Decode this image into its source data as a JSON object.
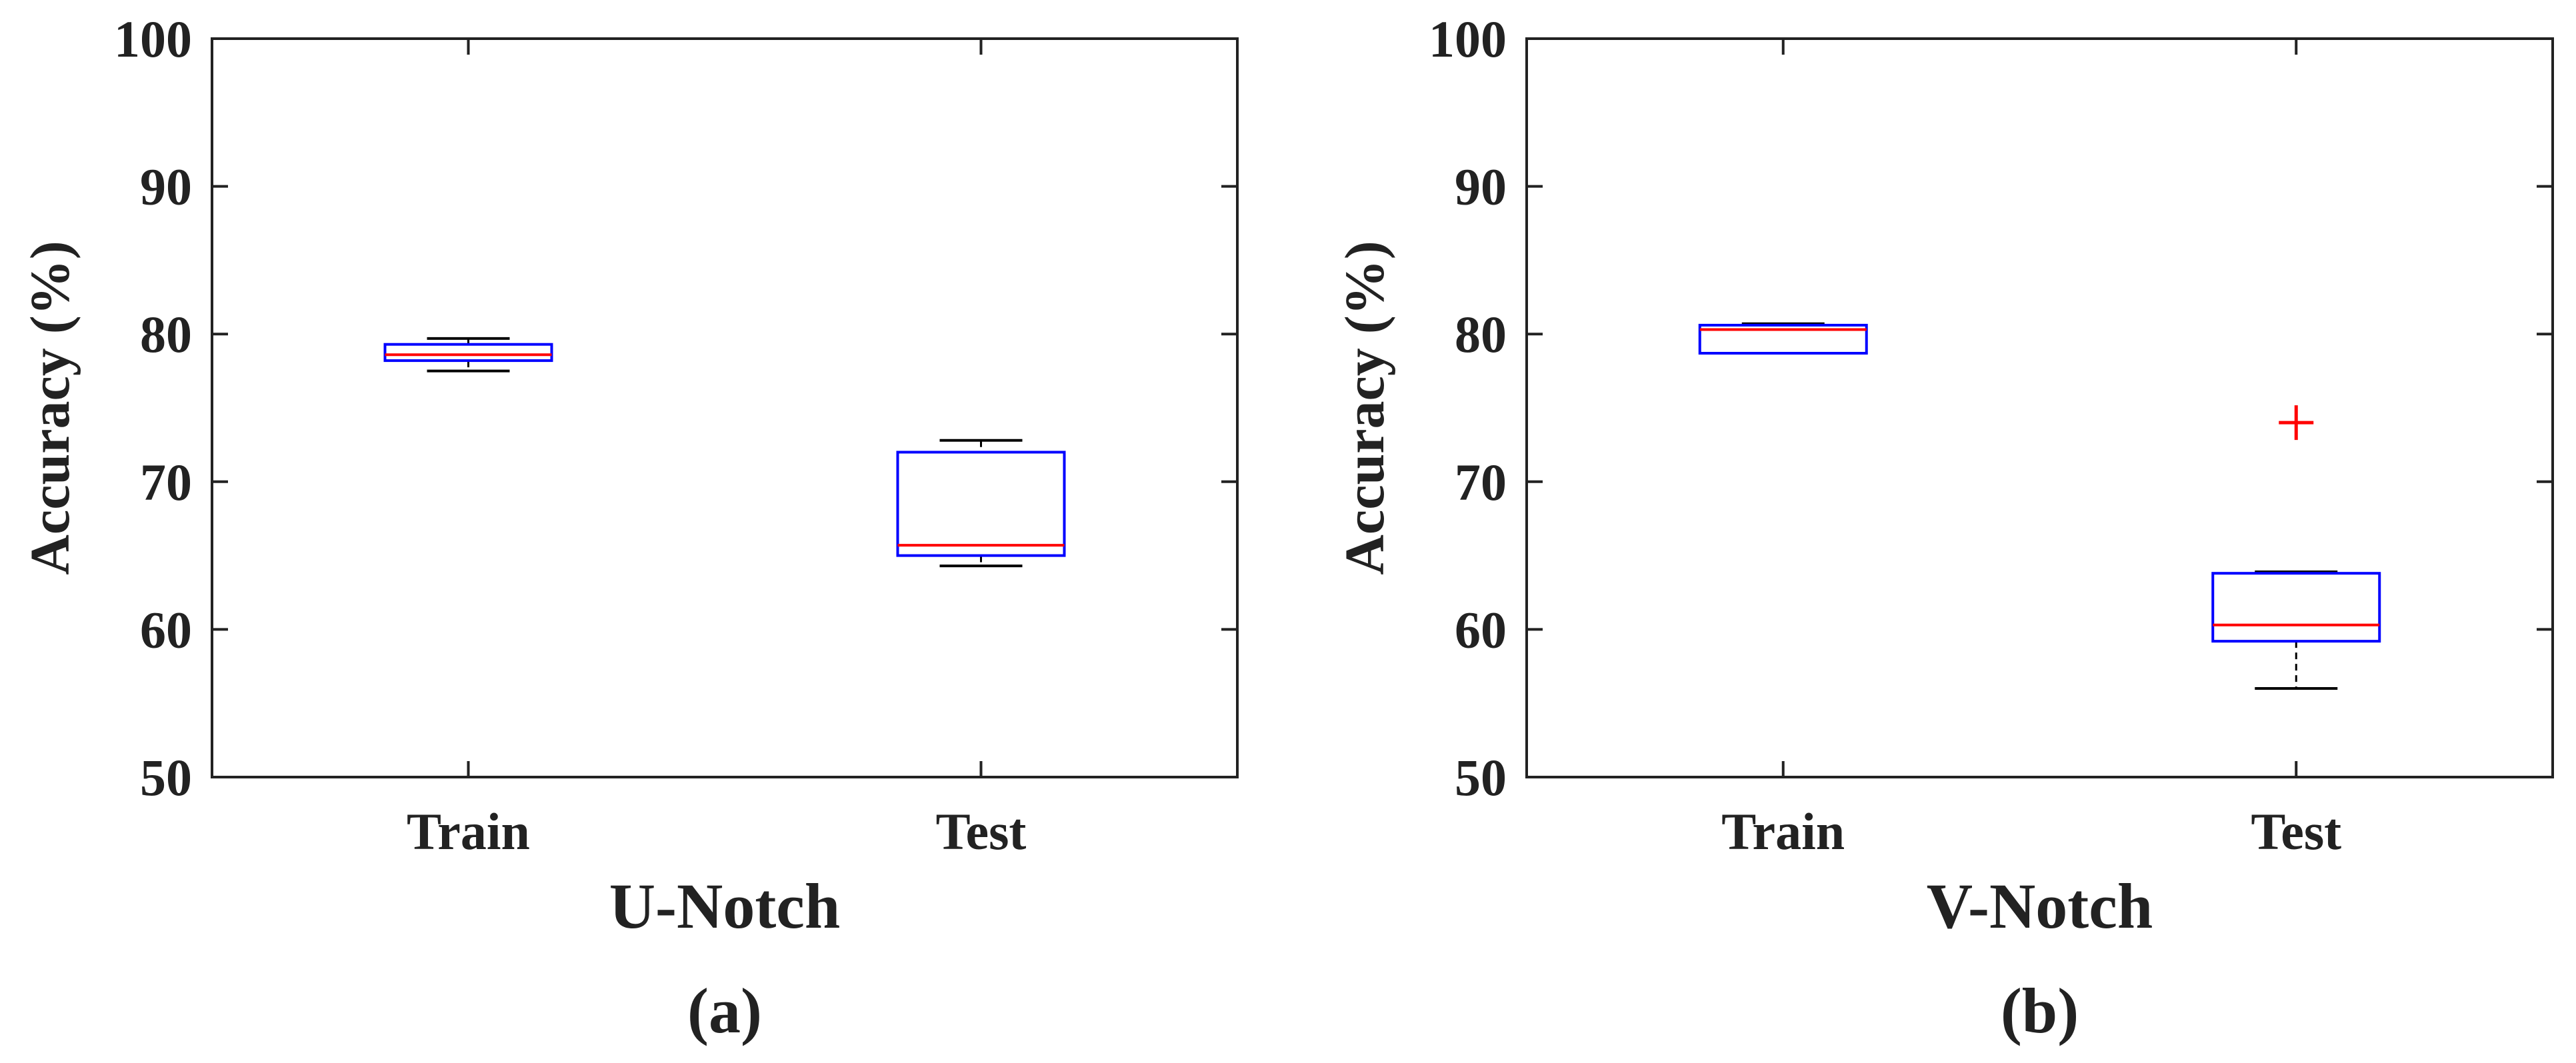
{
  "chart_data": [
    {
      "type": "box",
      "xlabel": "U-Notch",
      "ylabel": "Accuracy (%)",
      "panel_label": "(a)",
      "ylim": [
        50,
        100
      ],
      "yticks": [
        50,
        60,
        70,
        80,
        90,
        100
      ],
      "categories": [
        "Train",
        "Test"
      ],
      "boxes": [
        {
          "category": "Train",
          "whisker_low": 77.5,
          "q1": 78.2,
          "median": 78.6,
          "q3": 79.3,
          "whisker_high": 79.7,
          "outliers": []
        },
        {
          "category": "Test",
          "whisker_low": 64.3,
          "q1": 65.0,
          "median": 65.7,
          "q3": 72.0,
          "whisker_high": 72.8,
          "outliers": []
        }
      ],
      "grid": false,
      "colors": {
        "box": "#0000ff",
        "median": "#ff0000",
        "whisker": "#000000",
        "outlier": "#ff0000",
        "axis": "#222222"
      }
    },
    {
      "type": "box",
      "xlabel": "V-Notch",
      "ylabel": "Accuracy (%)",
      "panel_label": "(b)",
      "ylim": [
        50,
        100
      ],
      "yticks": [
        50,
        60,
        70,
        80,
        90,
        100
      ],
      "categories": [
        "Train",
        "Test"
      ],
      "boxes": [
        {
          "category": "Train",
          "whisker_low": 78.7,
          "q1": 78.7,
          "median": 80.3,
          "q3": 80.6,
          "whisker_high": 80.7,
          "outliers": []
        },
        {
          "category": "Test",
          "whisker_low": 56.0,
          "q1": 59.2,
          "median": 60.3,
          "q3": 63.8,
          "whisker_high": 63.9,
          "outliers": [
            74.0
          ]
        }
      ],
      "grid": false,
      "colors": {
        "box": "#0000ff",
        "median": "#ff0000",
        "whisker": "#000000",
        "outlier": "#ff0000",
        "axis": "#222222"
      }
    }
  ]
}
